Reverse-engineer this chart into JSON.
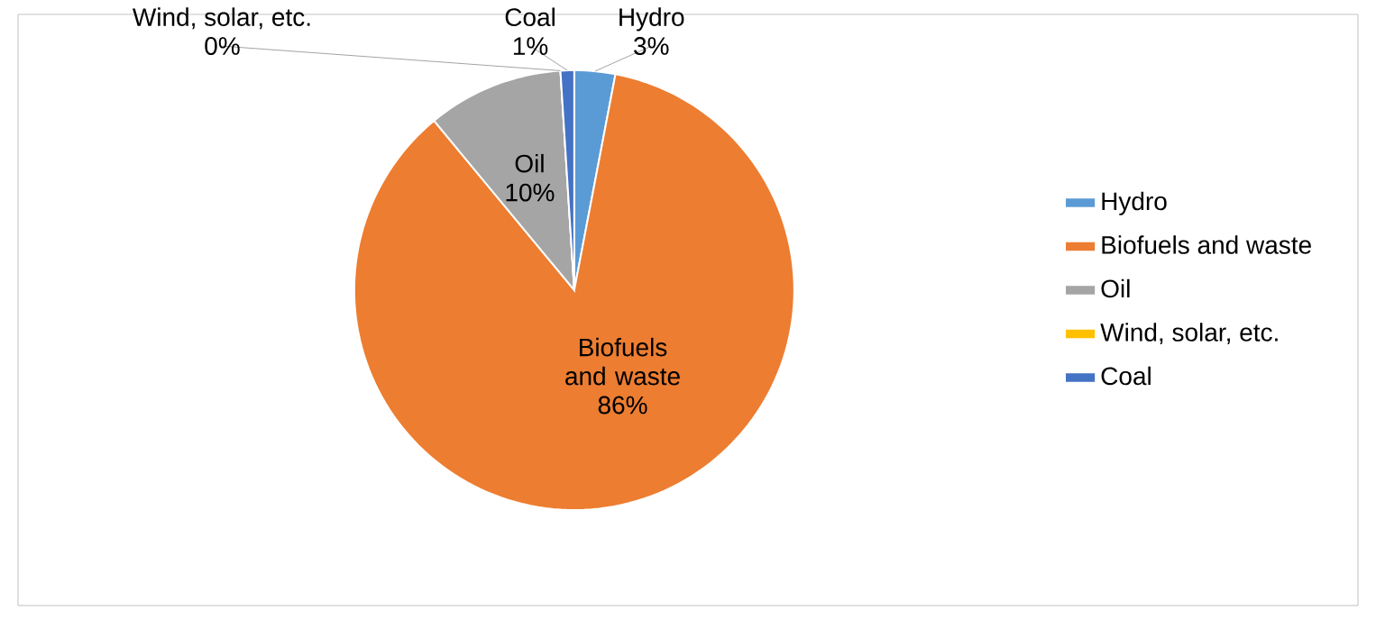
{
  "chart_data": {
    "type": "pie",
    "categories": [
      "Hydro",
      "Biofuels and waste",
      "Oil",
      "Wind, solar, etc.",
      "Coal"
    ],
    "values": [
      3,
      86,
      10,
      0,
      1
    ],
    "value_labels": [
      "3%",
      "86%",
      "10%",
      "0%",
      "1%"
    ],
    "colors": [
      "#5b9bd5",
      "#ed7d31",
      "#a5a5a5",
      "#ffc000",
      "#4472c4"
    ],
    "legend": "right"
  }
}
